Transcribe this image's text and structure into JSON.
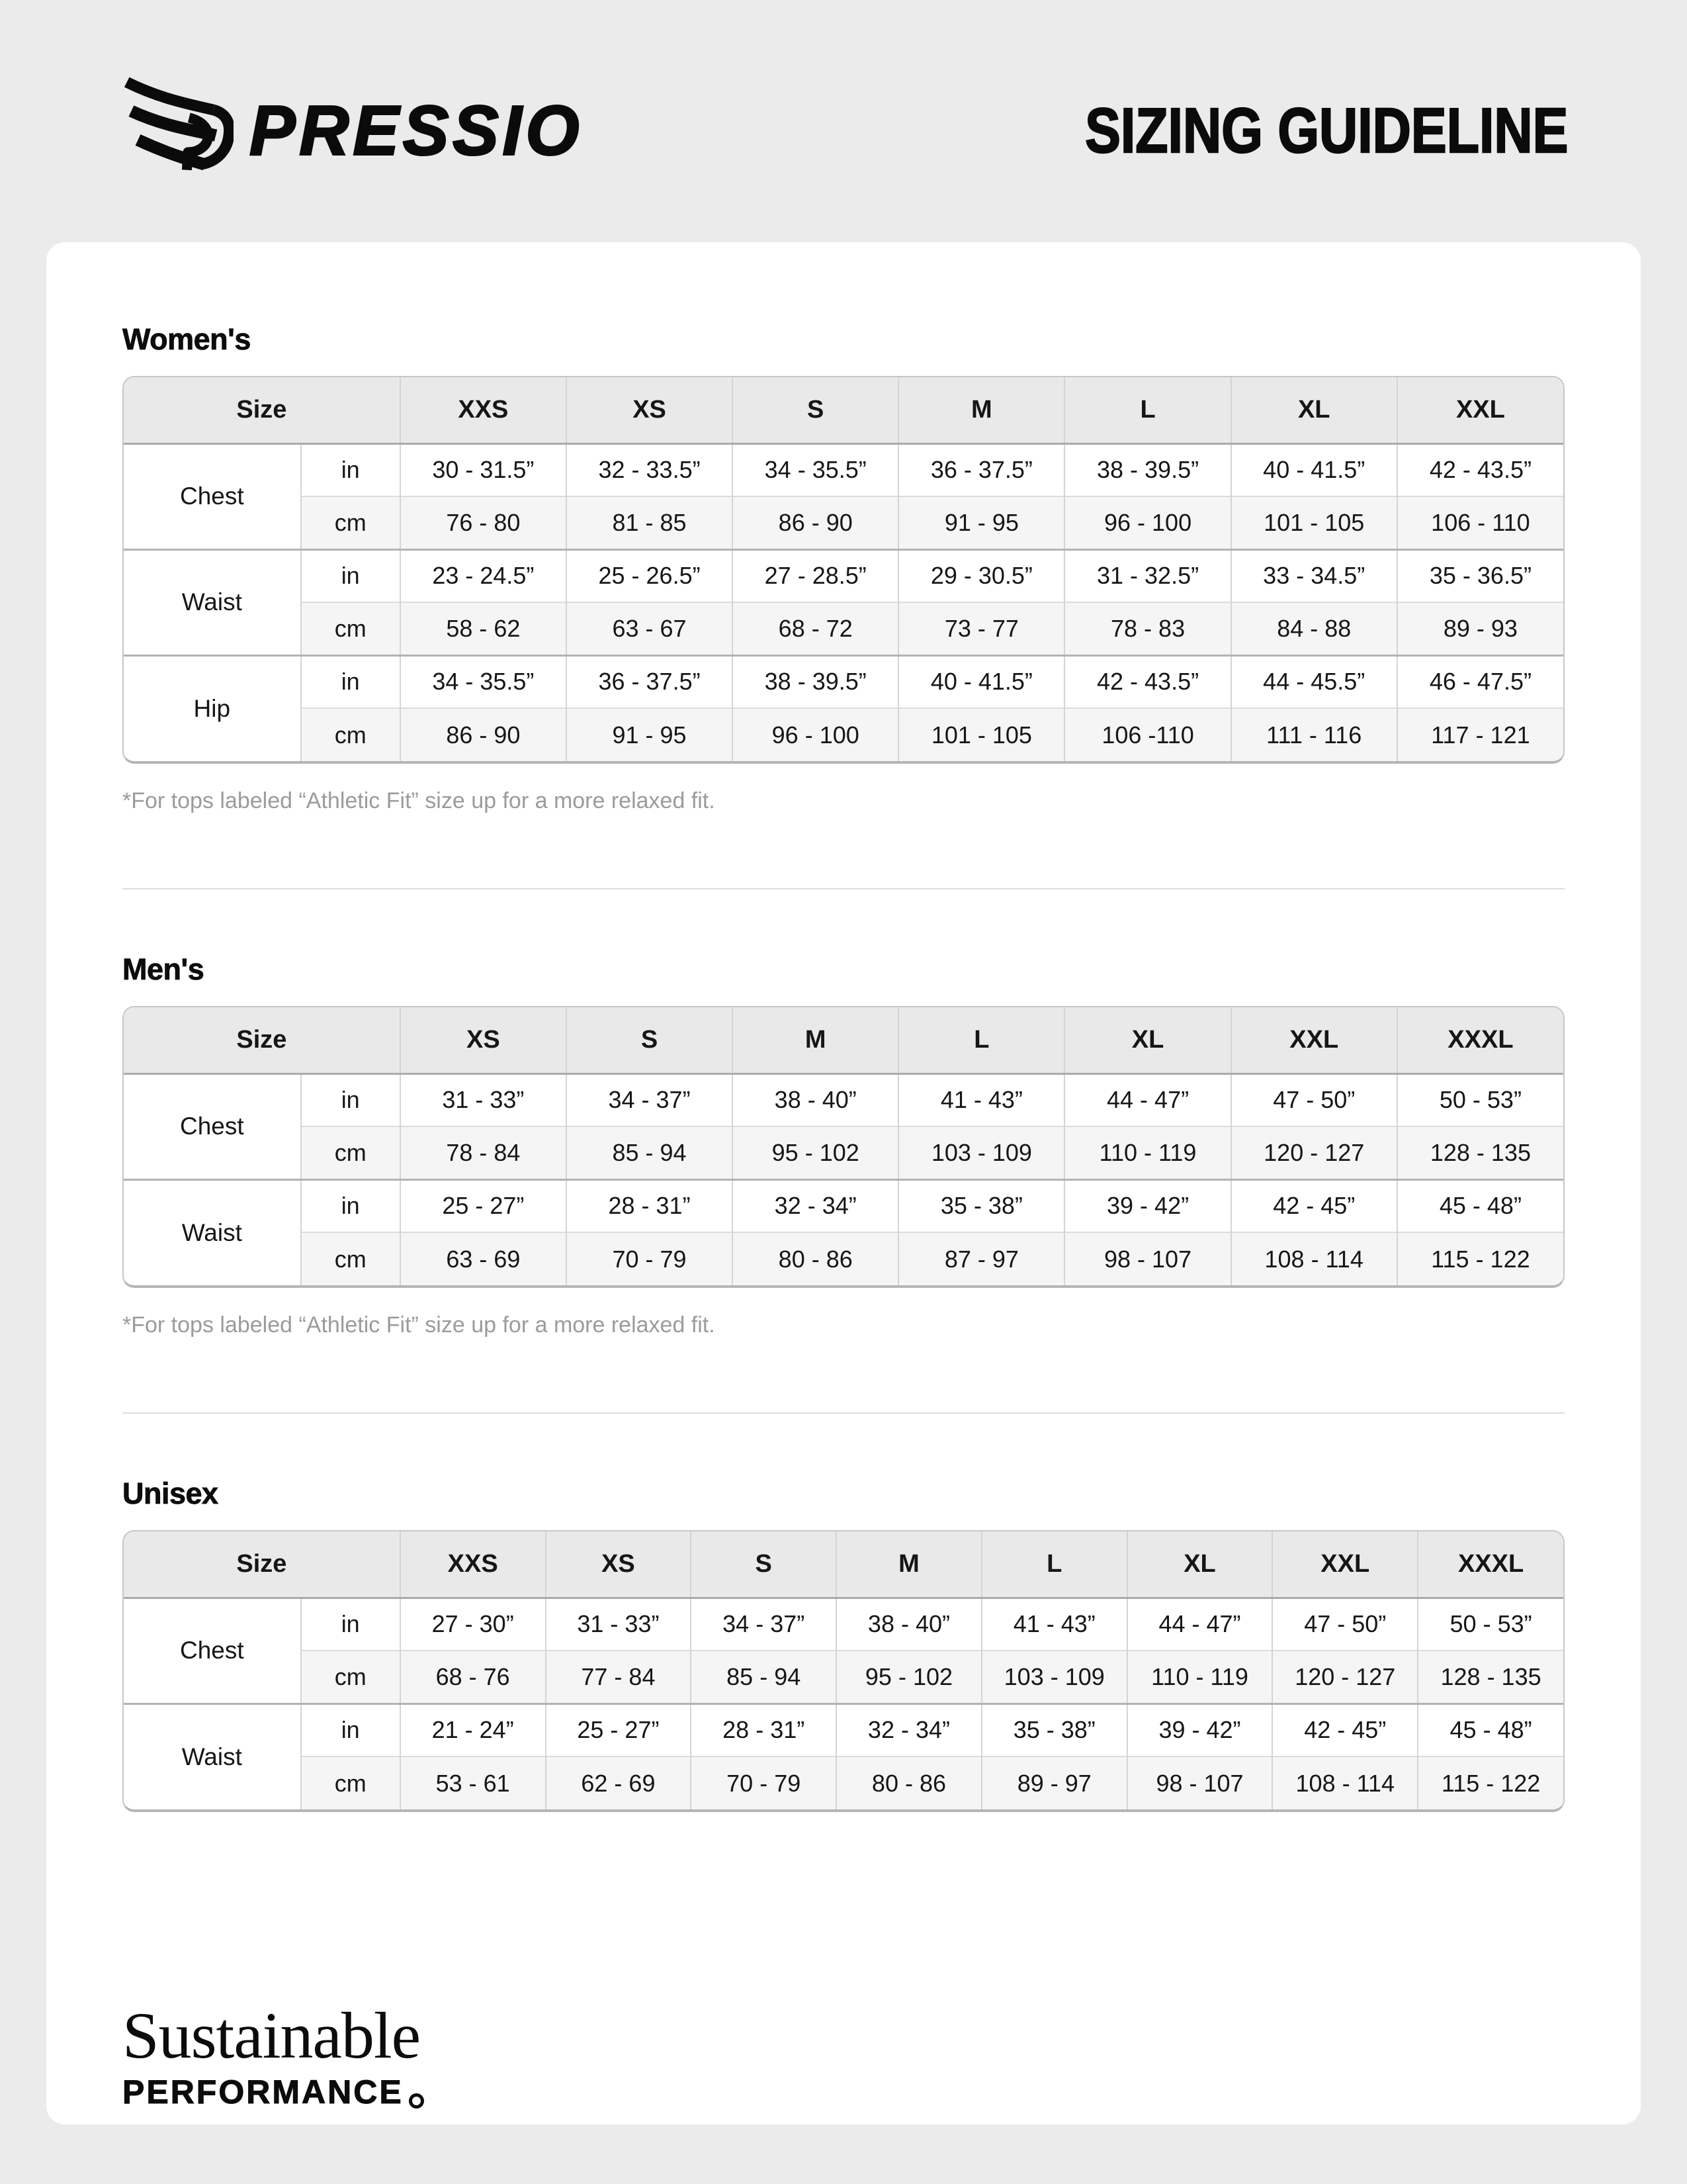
{
  "header": {
    "brand": "PRESSIO",
    "title": "SIZING GUIDELINE"
  },
  "units": {
    "inches": "in",
    "centimeters": "cm"
  },
  "sections": [
    {
      "id": "womens",
      "heading": "Women's",
      "size_label": "Size",
      "sizes": [
        "XXS",
        "XS",
        "S",
        "M",
        "L",
        "XL",
        "XXL"
      ],
      "measurements": [
        {
          "label": "Chest",
          "in": [
            "30 - 31.5”",
            "32 - 33.5”",
            "34 - 35.5”",
            "36 - 37.5”",
            "38 - 39.5”",
            "40 - 41.5”",
            "42 - 43.5”"
          ],
          "cm": [
            "76 - 80",
            "81 - 85",
            "86 - 90",
            "91 - 95",
            "96 - 100",
            "101 - 105",
            "106 - 110"
          ]
        },
        {
          "label": "Waist",
          "in": [
            "23 - 24.5”",
            "25 - 26.5”",
            "27 - 28.5”",
            "29 - 30.5”",
            "31 - 32.5”",
            "33 - 34.5”",
            "35 - 36.5”"
          ],
          "cm": [
            "58 - 62",
            "63 - 67",
            "68 - 72",
            "73 - 77",
            "78 - 83",
            "84 - 88",
            "89 - 93"
          ]
        },
        {
          "label": "Hip",
          "in": [
            "34 - 35.5”",
            "36 - 37.5”",
            "38 - 39.5”",
            "40 - 41.5”",
            "42 - 43.5”",
            "44 - 45.5”",
            "46 - 47.5”"
          ],
          "cm": [
            "86 - 90",
            "91 - 95",
            "96 - 100",
            "101 - 105",
            "106 -110",
            "111 - 116",
            "117 - 121"
          ]
        }
      ],
      "footnote": "*For tops labeled “Athletic Fit” size up for a more relaxed fit."
    },
    {
      "id": "mens",
      "heading": "Men's",
      "size_label": "Size",
      "sizes": [
        "XS",
        "S",
        "M",
        "L",
        "XL",
        "XXL",
        "XXXL"
      ],
      "measurements": [
        {
          "label": "Chest",
          "in": [
            "31 - 33”",
            "34 - 37”",
            "38 - 40”",
            "41 - 43”",
            "44 - 47”",
            "47 - 50”",
            "50 - 53”"
          ],
          "cm": [
            "78 - 84",
            "85 - 94",
            "95 - 102",
            "103 - 109",
            "110 - 119",
            "120 - 127",
            "128 - 135"
          ]
        },
        {
          "label": "Waist",
          "in": [
            "25 - 27”",
            "28 - 31”",
            "32 - 34”",
            "35 - 38”",
            "39 - 42”",
            "42 - 45”",
            "45 - 48”"
          ],
          "cm": [
            "63 - 69",
            "70 - 79",
            "80 - 86",
            "87 - 97",
            "98 - 107",
            "108 - 114",
            "115 - 122"
          ]
        }
      ],
      "footnote": "*For tops labeled “Athletic Fit” size up for a more relaxed fit."
    },
    {
      "id": "unisex",
      "heading": "Unisex",
      "size_label": "Size",
      "sizes": [
        "XXS",
        "XS",
        "S",
        "M",
        "L",
        "XL",
        "XXL",
        "XXXL"
      ],
      "measurements": [
        {
          "label": "Chest",
          "in": [
            "27 - 30”",
            "31 - 33”",
            "34 - 37”",
            "38 - 40”",
            "41 - 43”",
            "44 - 47”",
            "47 - 50”",
            "50 - 53”"
          ],
          "cm": [
            "68 - 76",
            "77 - 84",
            "85 - 94",
            "95 - 102",
            "103 - 109",
            "110 - 119",
            "120 - 127",
            "128 - 135"
          ]
        },
        {
          "label": "Waist",
          "in": [
            "21 - 24”",
            "25 - 27”",
            "28 - 31”",
            "32 - 34”",
            "35 - 38”",
            "39 - 42”",
            "42 - 45”",
            "45 - 48”"
          ],
          "cm": [
            "53 - 61",
            "62 - 69",
            "70 - 79",
            "80 - 86",
            "89 - 97",
            "98 - 107",
            "108 - 114",
            "115 - 122"
          ]
        }
      ]
    }
  ],
  "footer": {
    "line1": "Sustainable",
    "line2": "PERFORMANCE"
  },
  "colors": {
    "page_bg": "#ebebeb",
    "card_bg": "#ffffff",
    "table_header_bg": "#e9e9e9",
    "alt_row_bg": "#f5f5f5",
    "border": "#c7c7c7",
    "text": "#141414",
    "footnote": "#9b9b9b"
  }
}
